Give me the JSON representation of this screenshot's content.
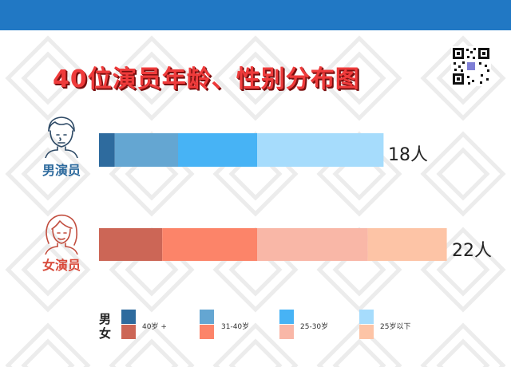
{
  "title": "40位演员年龄、性别分布图",
  "gender_labels": {
    "male": "男演员",
    "female": "女演员"
  },
  "counts": {
    "male": "18人",
    "female": "22人"
  },
  "legend": {
    "row_labels": [
      "男",
      "女"
    ],
    "items": [
      "40岁 +",
      "31-40岁",
      "25-30岁",
      "25岁以下"
    ]
  },
  "colors": {
    "topbar": "#2178c4",
    "title": "#ef3b3b",
    "male": [
      "#2e6b9e",
      "#64a6d2",
      "#47b3f5",
      "#a6dcfc"
    ],
    "female": [
      "#cc6656",
      "#fc8469",
      "#f9b7a7",
      "#fdc4a6"
    ]
  },
  "chart_data": {
    "type": "bar",
    "orientation": "horizontal",
    "stacked": true,
    "title": "40位演员年龄、性别分布图",
    "categories": [
      "男演员",
      "女演员"
    ],
    "series": [
      {
        "name": "40岁 +",
        "values": [
          1,
          4
        ]
      },
      {
        "name": "31-40岁",
        "values": [
          4,
          6
        ]
      },
      {
        "name": "25-30岁",
        "values": [
          5,
          7
        ]
      },
      {
        "name": "25岁以下",
        "values": [
          8,
          5
        ]
      }
    ],
    "totals": [
      18,
      22
    ],
    "xlim": [
      0,
      22
    ],
    "grid": false,
    "legend_position": "bottom"
  }
}
